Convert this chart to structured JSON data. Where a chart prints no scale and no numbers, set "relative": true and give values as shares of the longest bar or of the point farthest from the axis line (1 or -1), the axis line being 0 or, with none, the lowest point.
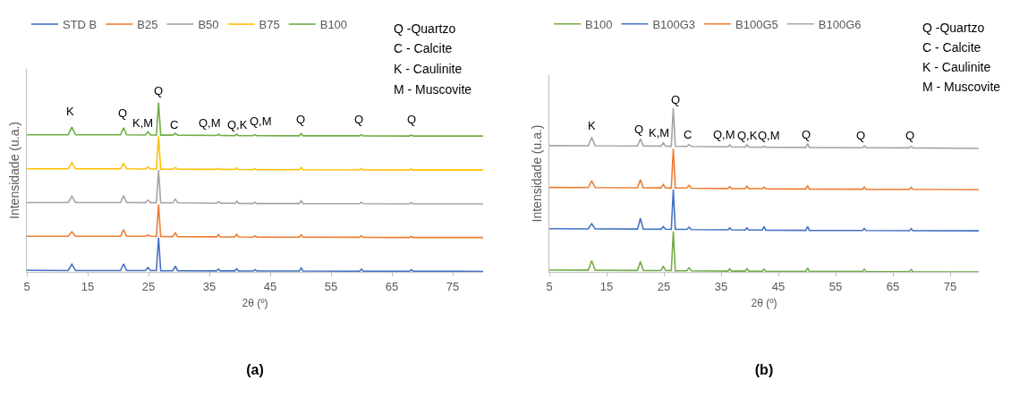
{
  "chart_data": [
    {
      "type": "line",
      "title": "(a)",
      "xlabel": "2θ (º)",
      "ylabel": "Intensidade (u.a.)",
      "relative": true,
      "legend": "top",
      "xlim": [
        5,
        80
      ],
      "xticks": [
        5,
        15,
        25,
        35,
        45,
        55,
        65,
        75
      ],
      "x": [
        5,
        11.8,
        12.4,
        13,
        20.4,
        20.9,
        21.4,
        24.5,
        24.9,
        25.3,
        26.3,
        26.65,
        27,
        29,
        29.4,
        29.8,
        36.2,
        36.5,
        36.8,
        39.2,
        39.5,
        39.8,
        42.2,
        42.5,
        42.8,
        49.8,
        50.1,
        50.4,
        59.7,
        60,
        60.3,
        67.9,
        68.2,
        68.5,
        80
      ],
      "series": [
        {
          "name": "STD B",
          "color": "#4472c4",
          "values": [
            0.009,
            0.008,
            0.044,
            0.008,
            0.008,
            0.047,
            0.008,
            0.008,
            0.025,
            0.008,
            0.008,
            0.203,
            0.007,
            0.007,
            0.033,
            0.007,
            0.006,
            0.016,
            0.006,
            0.006,
            0.018,
            0.006,
            0.005,
            0.013,
            0.005,
            0.005,
            0.022,
            0.005,
            0.004,
            0.016,
            0.004,
            0.004,
            0.013,
            0.004,
            0.003
          ]
        },
        {
          "name": "B25",
          "color": "#ed7d31",
          "values": [
            0.21,
            0.21,
            0.236,
            0.21,
            0.21,
            0.25,
            0.21,
            0.21,
            0.219,
            0.21,
            0.209,
            0.399,
            0.209,
            0.208,
            0.23,
            0.208,
            0.207,
            0.219,
            0.207,
            0.206,
            0.221,
            0.206,
            0.205,
            0.213,
            0.205,
            0.205,
            0.219,
            0.205,
            0.204,
            0.214,
            0.204,
            0.203,
            0.21,
            0.203,
            0.203
          ]
        },
        {
          "name": "B50",
          "color": "#a5a5a5",
          "values": [
            0.41,
            0.41,
            0.446,
            0.41,
            0.41,
            0.45,
            0.41,
            0.409,
            0.424,
            0.409,
            0.409,
            0.602,
            0.408,
            0.408,
            0.43,
            0.408,
            0.406,
            0.415,
            0.406,
            0.405,
            0.418,
            0.405,
            0.404,
            0.412,
            0.404,
            0.404,
            0.42,
            0.404,
            0.403,
            0.412,
            0.403,
            0.402,
            0.41,
            0.402,
            0.402
          ]
        },
        {
          "name": "B75",
          "color": "#ffc000",
          "values": [
            0.609,
            0.609,
            0.645,
            0.609,
            0.609,
            0.642,
            0.609,
            0.608,
            0.62,
            0.608,
            0.608,
            0.801,
            0.607,
            0.607,
            0.616,
            0.607,
            0.606,
            0.612,
            0.606,
            0.605,
            0.614,
            0.605,
            0.604,
            0.61,
            0.604,
            0.604,
            0.617,
            0.604,
            0.603,
            0.612,
            0.603,
            0.602,
            0.608,
            0.602,
            0.602
          ]
        },
        {
          "name": "B100",
          "color": "#70ad47",
          "values": [
            0.81,
            0.81,
            0.856,
            0.81,
            0.81,
            0.852,
            0.81,
            0.809,
            0.828,
            0.809,
            0.809,
            1,
            0.808,
            0.808,
            0.819,
            0.808,
            0.806,
            0.813,
            0.806,
            0.805,
            0.814,
            0.805,
            0.805,
            0.811,
            0.805,
            0.804,
            0.818,
            0.804,
            0.804,
            0.812,
            0.804,
            0.803,
            0.809,
            0.803,
            0.803
          ]
        }
      ],
      "annotations": [
        "K",
        "Q",
        "K,M",
        "Q",
        "C",
        "Q,M",
        "Q,K",
        "Q,M",
        "Q",
        "Q",
        "Q",
        "Q -Quartzo",
        "C - Calcite",
        "K - Caulinite",
        "M - Muscovite"
      ]
    },
    {
      "type": "line",
      "title": "(b)",
      "xlabel": "2θ (º)",
      "ylabel": "Intensidade (u.a.)",
      "relative": true,
      "legend": "top",
      "xlim": [
        5,
        80
      ],
      "xticks": [
        5,
        15,
        25,
        35,
        45,
        55,
        65,
        75
      ],
      "x": [
        5,
        11.8,
        12.4,
        13,
        20.4,
        20.9,
        21.4,
        24.5,
        24.9,
        25.3,
        26.3,
        26.65,
        27,
        29,
        29.4,
        29.8,
        36.2,
        36.5,
        36.8,
        39.2,
        39.5,
        39.8,
        42.2,
        42.5,
        42.8,
        49.8,
        50.1,
        50.4,
        59.7,
        60,
        60.3,
        67.9,
        68.2,
        68.5,
        80
      ],
      "series": [
        {
          "name": "B100",
          "color": "#70ad47",
          "values": [
            0.011,
            0.01,
            0.068,
            0.01,
            0.009,
            0.063,
            0.009,
            0.008,
            0.035,
            0.008,
            0.008,
            0.247,
            0.007,
            0.007,
            0.024,
            0.007,
            0.005,
            0.019,
            0.005,
            0.005,
            0.019,
            0.005,
            0.004,
            0.016,
            0.004,
            0.003,
            0.024,
            0.003,
            0.002,
            0.016,
            0.002,
            0.001,
            0.014,
            0.001,
            0
          ]
        },
        {
          "name": "B100G3",
          "color": "#4472c4",
          "values": [
            0.263,
            0.262,
            0.294,
            0.262,
            0.261,
            0.326,
            0.261,
            0.26,
            0.276,
            0.26,
            0.259,
            0.501,
            0.259,
            0.259,
            0.272,
            0.258,
            0.256,
            0.268,
            0.256,
            0.255,
            0.268,
            0.255,
            0.255,
            0.276,
            0.254,
            0.253,
            0.276,
            0.253,
            0.252,
            0.265,
            0.252,
            0.251,
            0.263,
            0.251,
            0.25
          ]
        },
        {
          "name": "B100G5",
          "color": "#ed7d31",
          "values": [
            0.515,
            0.514,
            0.556,
            0.514,
            0.513,
            0.562,
            0.513,
            0.512,
            0.532,
            0.512,
            0.511,
            0.751,
            0.511,
            0.511,
            0.528,
            0.51,
            0.508,
            0.52,
            0.508,
            0.507,
            0.523,
            0.507,
            0.507,
            0.517,
            0.506,
            0.505,
            0.526,
            0.505,
            0.504,
            0.517,
            0.504,
            0.503,
            0.515,
            0.503,
            0.502
          ]
        },
        {
          "name": "B100G6",
          "color": "#a5a5a5",
          "values": [
            0.77,
            0.769,
            0.82,
            0.769,
            0.768,
            0.811,
            0.768,
            0.767,
            0.787,
            0.767,
            0.766,
            1,
            0.766,
            0.765,
            0.776,
            0.765,
            0.762,
            0.775,
            0.762,
            0.761,
            0.775,
            0.761,
            0.76,
            0.767,
            0.76,
            0.759,
            0.783,
            0.759,
            0.757,
            0.769,
            0.757,
            0.756,
            0.765,
            0.756,
            0.753
          ]
        }
      ],
      "annotations": [
        "K",
        "Q",
        "K,M",
        "Q",
        "C",
        "Q,M",
        "Q,K",
        "Q,M",
        "Q",
        "Q",
        "Q",
        "Q -Quartzo",
        "C - Calcite",
        "K - Caulinite",
        "M - Muscovite"
      ]
    }
  ]
}
